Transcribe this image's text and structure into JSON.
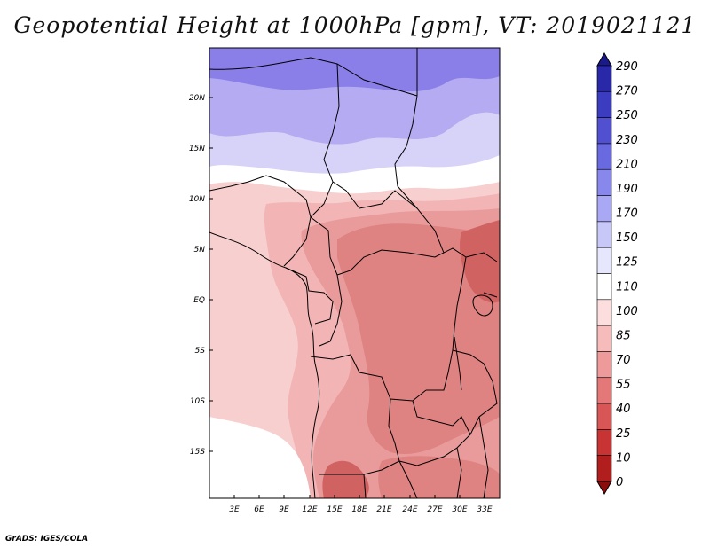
{
  "title": "Geopotential Height at 1000hPa [gpm], VT: 2019021121",
  "credit": "GrADS: IGES/COLA",
  "lat_labels": [
    "20N",
    "15N",
    "10N",
    "5N",
    "EQ",
    "5S",
    "10S",
    "15S"
  ],
  "lon_labels": [
    "3E",
    "6E",
    "9E",
    "12E",
    "15E",
    "18E",
    "21E",
    "24E",
    "27E",
    "30E",
    "33E"
  ],
  "colorbar": {
    "labels": [
      "290",
      "270",
      "250",
      "230",
      "210",
      "190",
      "170",
      "150",
      "125",
      "110",
      "100",
      "85",
      "70",
      "55",
      "40",
      "25",
      "10",
      "0"
    ],
    "colors": [
      "#1a1a8c",
      "#2828a8",
      "#3c3cc0",
      "#5050d0",
      "#6a6ae0",
      "#8888ec",
      "#a8a8f4",
      "#c8c8f8",
      "#e6e6fc",
      "#ffffff",
      "#fcdede",
      "#f6bcbc",
      "#ee9a9a",
      "#e47878",
      "#d85656",
      "#c83434",
      "#b01e1e",
      "#8c0c0c"
    ]
  },
  "field_colors": {
    "blue_dark": "#8a7ee8",
    "blue_mid": "#b4abf2",
    "blue_light": "#d6d2f8",
    "white": "#ffffff",
    "pink_light": "#f8cfcf",
    "pink": "#f2b4b4",
    "red_light": "#e99a9a",
    "red_mid": "#de8282",
    "red_dark": "#d06262"
  }
}
